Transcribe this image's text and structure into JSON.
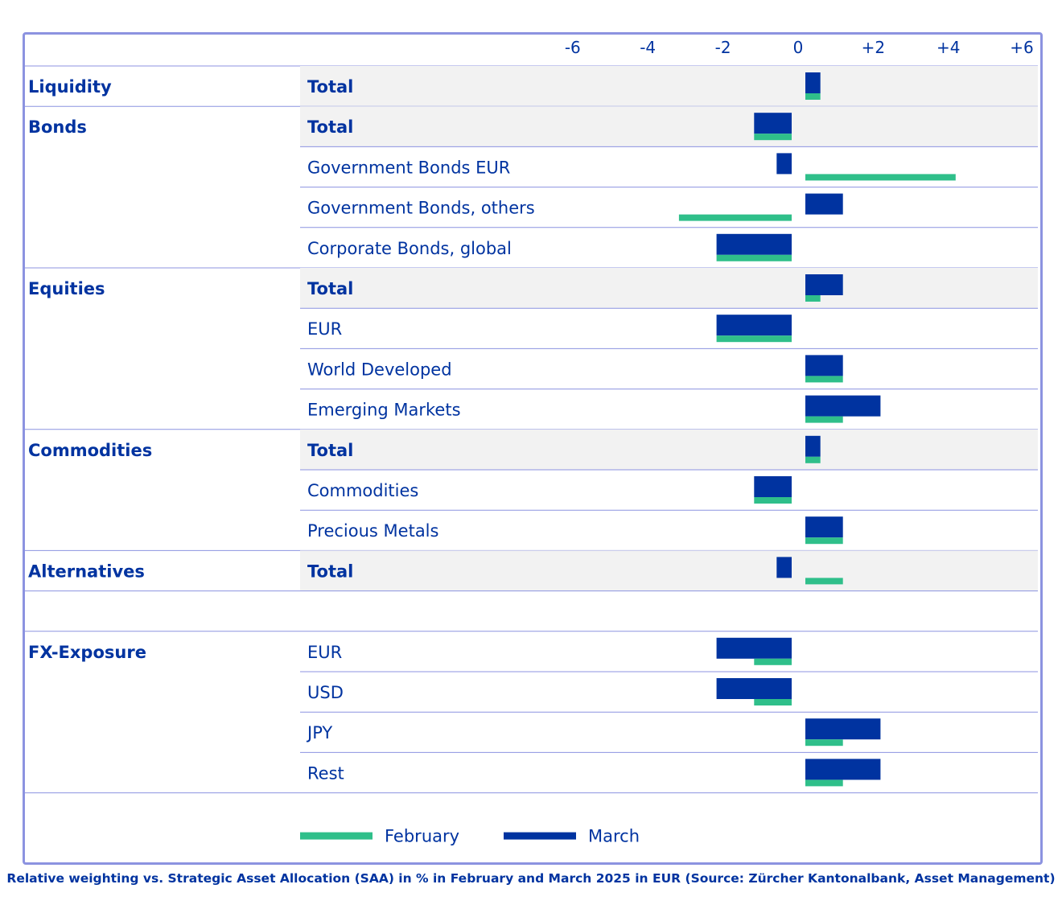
{
  "chart_data": {
    "type": "bar",
    "orientation": "horizontal",
    "x_ticks": [
      "-6",
      "-4",
      "-2",
      "0",
      "+2",
      "+4",
      "+6"
    ],
    "xlim": [
      -6,
      6
    ],
    "colors": {
      "February": "#2fbf8a",
      "March": "#0033a0"
    },
    "legend": {
      "position": "bottom-center",
      "items": [
        "February",
        "March"
      ]
    },
    "groups": [
      {
        "name": "Liquidity",
        "rows": [
          {
            "label": "Total",
            "bold": true,
            "february": 0.4,
            "march": 0.4
          }
        ]
      },
      {
        "name": "Bonds",
        "rows": [
          {
            "label": "Total",
            "bold": true,
            "february": -1.0,
            "march": -1.0
          },
          {
            "label": "Government Bonds EUR",
            "bold": false,
            "february": 4.0,
            "march": -0.4
          },
          {
            "label": "Government Bonds, others",
            "bold": false,
            "february": -3.0,
            "march": 1.0
          },
          {
            "label": "Corporate Bonds, global",
            "bold": false,
            "february": -2.0,
            "march": -2.0
          }
        ]
      },
      {
        "name": "Equities",
        "rows": [
          {
            "label": "Total",
            "bold": true,
            "february": 0.4,
            "march": 1.0
          },
          {
            "label": "EUR",
            "bold": false,
            "february": -2.0,
            "march": -2.0
          },
          {
            "label": "World Developed",
            "bold": false,
            "february": 1.0,
            "march": 1.0
          },
          {
            "label": "Emerging Markets",
            "bold": false,
            "february": 1.0,
            "march": 2.0
          }
        ]
      },
      {
        "name": "Commodities",
        "rows": [
          {
            "label": "Total",
            "bold": true,
            "february": 0.4,
            "march": 0.4
          },
          {
            "label": "Commodities",
            "bold": false,
            "february": -1.0,
            "march": -1.0
          },
          {
            "label": "Precious Metals",
            "bold": false,
            "february": 1.0,
            "march": 1.0
          }
        ]
      },
      {
        "name": "Alternatives",
        "rows": [
          {
            "label": "Total",
            "bold": true,
            "february": 1.0,
            "march": -0.4
          }
        ]
      },
      {
        "name": "FX-Exposure",
        "rows": [
          {
            "label": "EUR",
            "bold": false,
            "february": -1.0,
            "march": -2.0
          },
          {
            "label": "USD",
            "bold": false,
            "february": -1.0,
            "march": -2.0
          },
          {
            "label": "JPY",
            "bold": false,
            "february": 1.0,
            "march": 2.0
          },
          {
            "label": "Rest",
            "bold": false,
            "february": 1.0,
            "march": 2.0
          }
        ]
      }
    ]
  },
  "caption": "Relative weighting vs. Strategic Asset Allocation (SAA) in % in February and March 2025 in EUR (Source: Zürcher Kantonalbank, Asset Management)"
}
